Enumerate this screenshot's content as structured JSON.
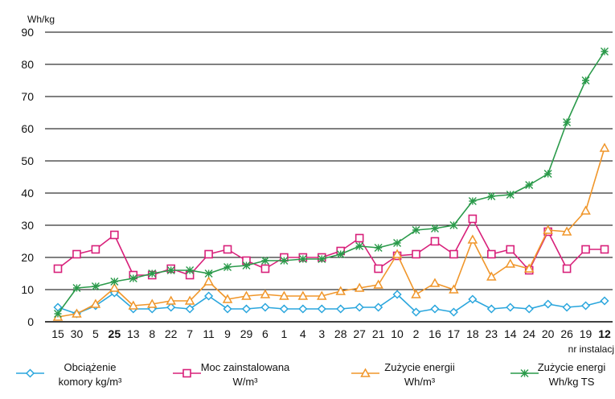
{
  "chart_data": {
    "type": "line",
    "ylabel": "Wh/kg",
    "xlabel": "nr instalacj",
    "ylim": [
      0,
      90
    ],
    "yticks": [
      "0",
      "10",
      "20",
      "30",
      "40",
      "50",
      "60",
      "70",
      "80",
      "90"
    ],
    "grid": "horizontal",
    "legend_position": "bottom",
    "categories": [
      "15",
      "30",
      "5",
      "25",
      "13",
      "8",
      "22",
      "7",
      "11",
      "9",
      "29",
      "6",
      "1",
      "4",
      "3",
      "28",
      "27",
      "21",
      "10",
      "2",
      "16",
      "17",
      "18",
      "23",
      "14",
      "24",
      "20",
      "26",
      "19",
      "12"
    ],
    "bold_categories": [
      "25",
      "12"
    ],
    "series": [
      {
        "name": "Obciążenie komory kg/m³",
        "legend_lines": [
          "Obciążenie",
          "komory kg/m³"
        ],
        "color": "#2aa6dd",
        "marker": "diamond",
        "values": [
          4.5,
          2.5,
          5,
          9,
          4,
          4,
          4.5,
          4,
          8,
          4,
          4,
          4.5,
          4,
          4,
          4,
          4,
          4.5,
          4.5,
          8.5,
          3,
          4,
          3,
          7,
          4,
          4.5,
          4,
          5.5,
          4.5,
          5,
          6.5
        ]
      },
      {
        "name": "Moc zainstalowana W/m³",
        "legend_lines": [
          "Moc zainstalowana",
          "W/m³"
        ],
        "color": "#d8207a",
        "marker": "square",
        "values": [
          16.5,
          21,
          22.5,
          27,
          14.5,
          14.5,
          16.5,
          14.5,
          21,
          22.5,
          19,
          16.5,
          20,
          20,
          20,
          22,
          26,
          16.5,
          20.5,
          21,
          25,
          21,
          32,
          21,
          22.5,
          16,
          28,
          16.5,
          22.5,
          22.5
        ]
      },
      {
        "name": "Zużycie energii Wh/m³",
        "legend_lines": [
          "Zużycie energii",
          "Wh/m³"
        ],
        "color": "#f0962a",
        "marker": "triangle",
        "values": [
          1.5,
          2.5,
          5.5,
          10.5,
          5,
          5.5,
          6.5,
          6.5,
          12.5,
          7,
          8,
          8.5,
          8,
          8,
          8,
          9.5,
          10.5,
          11.5,
          21,
          8.5,
          12,
          10,
          25.5,
          14,
          18,
          16.5,
          28.5,
          28,
          34.5,
          54
        ]
      },
      {
        "name": "Zużycie energi Wh/kg TS",
        "legend_lines": [
          "Zużycie energi",
          "Wh/kg TS"
        ],
        "color": "#2a9a4a",
        "marker": "star",
        "values": [
          2.5,
          10.5,
          11,
          12.5,
          13.5,
          15,
          16,
          16,
          15,
          17,
          17.5,
          19,
          19,
          19.5,
          19.5,
          21,
          23.5,
          23,
          24.5,
          28.5,
          29,
          30,
          37.5,
          39,
          39.5,
          42.5,
          46,
          62,
          75,
          84
        ]
      }
    ]
  }
}
